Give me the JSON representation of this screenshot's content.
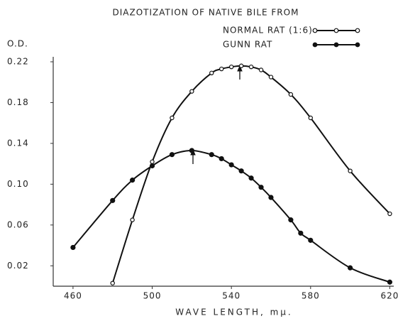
{
  "chart_data": {
    "type": "line",
    "title": "DIAZOTIZATION OF NATIVE BILE FROM",
    "y_label": "O.D.",
    "x_label": "WAVE LENGTH, mμ.",
    "series": [
      {
        "name": "NORMAL RAT (1:6)",
        "color": "#111",
        "marker": "open",
        "x": [
          480,
          490,
          500,
          510,
          520,
          530,
          535,
          540,
          545,
          550,
          555,
          560,
          570,
          580,
          600,
          620
        ],
        "values": [
          0.003,
          0.065,
          0.122,
          0.165,
          0.191,
          0.209,
          0.213,
          0.215,
          0.216,
          0.215,
          0.212,
          0.205,
          0.188,
          0.165,
          0.113,
          0.071
        ]
      },
      {
        "name": "GUNN RAT",
        "color": "#111",
        "marker": "filled",
        "x": [
          460,
          480,
          490,
          500,
          510,
          520,
          530,
          535,
          540,
          545,
          550,
          555,
          560,
          570,
          575,
          580,
          600,
          620
        ],
        "values": [
          0.038,
          0.084,
          0.104,
          0.118,
          0.129,
          0.133,
          0.129,
          0.125,
          0.119,
          0.113,
          0.106,
          0.097,
          0.087,
          0.065,
          0.052,
          0.045,
          0.018,
          0.004
        ]
      }
    ],
    "xlim": [
      450,
      622
    ],
    "xticks": [
      460,
      500,
      540,
      580,
      620
    ],
    "ylim": [
      0,
      0.22
    ],
    "yticks": [
      0.02,
      0.06,
      {
        "value": 0.1,
        "label": "0.10"
      },
      0.14,
      0.18,
      0.22
    ]
  }
}
